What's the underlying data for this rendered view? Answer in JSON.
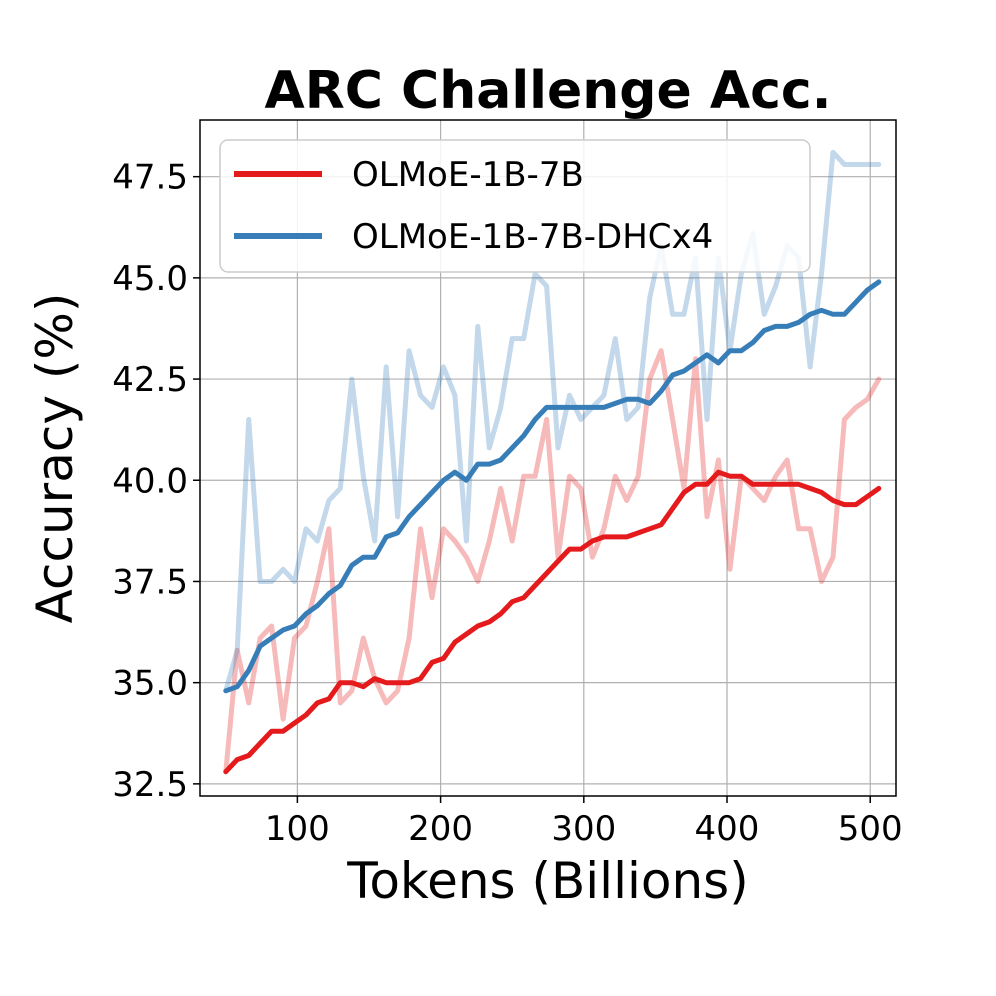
{
  "chart_data": {
    "type": "line",
    "title": "ARC Challenge Acc.",
    "xlabel": "Tokens (Billions)",
    "ylabel": "Accuracy (%)",
    "xlim": [
      32,
      518
    ],
    "ylim": [
      32.2,
      48.9
    ],
    "xticks": [
      100,
      200,
      300,
      400,
      500
    ],
    "yticks": [
      32.5,
      35.0,
      37.5,
      40.0,
      42.5,
      45.0,
      47.5
    ],
    "ytick_labels": [
      "32.5",
      "35.0",
      "37.5",
      "40.0",
      "42.5",
      "45.0",
      "47.5"
    ],
    "grid": true,
    "legend_position": "top-left",
    "x": [
      50,
      58,
      66,
      74,
      82,
      90,
      98,
      106,
      114,
      122,
      130,
      138,
      146,
      154,
      162,
      170,
      178,
      186,
      194,
      202,
      210,
      218,
      226,
      234,
      242,
      250,
      258,
      266,
      274,
      282,
      290,
      298,
      306,
      314,
      322,
      330,
      338,
      346,
      354,
      362,
      370,
      378,
      386,
      394,
      402,
      410,
      418,
      426,
      434,
      442,
      450,
      458,
      466,
      474,
      482,
      490,
      498,
      506
    ],
    "series": [
      {
        "name": "OLMoE-1B-7B",
        "color": "#e41a1c",
        "smoothed": [
          32.8,
          33.1,
          33.2,
          33.5,
          33.8,
          33.8,
          34.0,
          34.2,
          34.5,
          34.6,
          35.0,
          35.0,
          34.9,
          35.1,
          35.0,
          35.0,
          35.0,
          35.1,
          35.5,
          35.6,
          36.0,
          36.2,
          36.4,
          36.5,
          36.7,
          37.0,
          37.1,
          37.4,
          37.7,
          38.0,
          38.3,
          38.3,
          38.5,
          38.6,
          38.6,
          38.6,
          38.7,
          38.8,
          38.9,
          39.3,
          39.7,
          39.9,
          39.9,
          40.2,
          40.1,
          40.1,
          39.9,
          39.9,
          39.9,
          39.9,
          39.9,
          39.8,
          39.7,
          39.5,
          39.4,
          39.4,
          39.6,
          39.8
        ],
        "raw": [
          32.8,
          35.8,
          34.5,
          36.1,
          36.4,
          34.1,
          36.1,
          36.4,
          37.5,
          38.8,
          34.5,
          34.8,
          36.1,
          35.1,
          34.5,
          34.8,
          36.1,
          38.8,
          37.1,
          38.8,
          38.5,
          38.1,
          37.5,
          38.5,
          39.8,
          38.5,
          40.1,
          40.1,
          41.5,
          38.1,
          40.1,
          39.8,
          38.1,
          38.8,
          40.1,
          39.5,
          40.1,
          42.5,
          43.2,
          41.5,
          39.8,
          43.0,
          39.1,
          40.5,
          37.8,
          40.1,
          39.8,
          39.5,
          40.1,
          40.5,
          38.8,
          38.8,
          37.5,
          38.1,
          41.5,
          41.8,
          42.0,
          42.5
        ]
      },
      {
        "name": "OLMoE-1B-7B-DHCx4",
        "color": "#377eb8",
        "smoothed": [
          34.8,
          34.9,
          35.3,
          35.9,
          36.1,
          36.3,
          36.4,
          36.7,
          36.9,
          37.2,
          37.4,
          37.9,
          38.1,
          38.1,
          38.6,
          38.7,
          39.1,
          39.4,
          39.7,
          40.0,
          40.2,
          40.0,
          40.4,
          40.4,
          40.5,
          40.8,
          41.1,
          41.5,
          41.8,
          41.8,
          41.8,
          41.8,
          41.8,
          41.8,
          41.9,
          42.0,
          42.0,
          41.9,
          42.2,
          42.6,
          42.7,
          42.9,
          43.1,
          42.9,
          43.2,
          43.2,
          43.4,
          43.7,
          43.8,
          43.8,
          43.9,
          44.1,
          44.2,
          44.1,
          44.1,
          44.4,
          44.7,
          44.9
        ],
        "raw": [
          34.8,
          35.8,
          41.5,
          37.5,
          37.5,
          37.8,
          37.5,
          38.8,
          38.5,
          39.5,
          39.8,
          42.5,
          40.1,
          38.5,
          42.8,
          39.1,
          43.2,
          42.1,
          41.8,
          42.8,
          42.1,
          38.5,
          43.8,
          40.8,
          41.8,
          43.5,
          43.5,
          45.1,
          44.8,
          40.8,
          42.1,
          41.5,
          41.8,
          42.1,
          43.5,
          41.5,
          41.8,
          44.5,
          45.8,
          44.1,
          44.1,
          45.5,
          41.5,
          45.5,
          43.2,
          45.1,
          46.1,
          44.1,
          44.8,
          45.8,
          45.5,
          42.8,
          45.1,
          48.1,
          47.8,
          47.8,
          47.8,
          47.8
        ]
      }
    ]
  }
}
